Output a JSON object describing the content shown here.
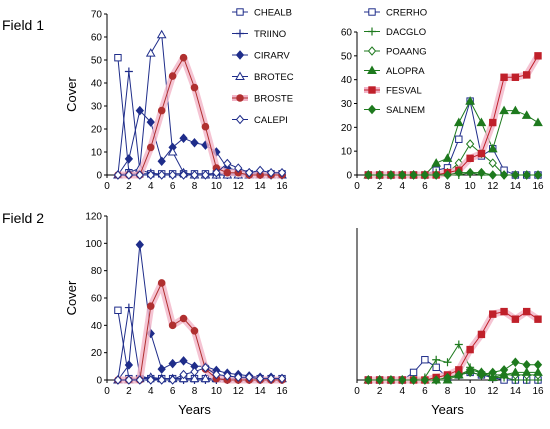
{
  "chart_data": [
    {
      "type": "line",
      "field_label": "Field 1",
      "ylabel": "Cover",
      "xlabel": "",
      "xlim": [
        0,
        16
      ],
      "ylim": [
        0,
        70
      ],
      "xticks": [
        0,
        2,
        4,
        6,
        8,
        10,
        12,
        14,
        16
      ],
      "yticks": [
        0,
        10,
        20,
        30,
        40,
        50,
        60,
        70
      ],
      "legend_position": "right",
      "series": [
        {
          "name": "CHEALB",
          "color": "#1f2d8a",
          "marker": "square-open",
          "x": [
            1,
            2,
            3,
            4,
            5,
            6,
            7,
            8,
            9,
            10,
            11,
            12,
            13,
            14,
            15,
            16
          ],
          "values": [
            51,
            1,
            0.5,
            0.5,
            0.5,
            0.5,
            0.5,
            0.5,
            0.5,
            0.5,
            0.5,
            0.5,
            0.5,
            0.5,
            0.5,
            0.5
          ]
        },
        {
          "name": "TRIINO",
          "color": "#1f2d8a",
          "marker": "plus",
          "x": [
            1,
            2,
            3,
            4,
            5,
            6,
            7,
            8,
            9,
            10,
            11,
            12,
            13,
            14,
            15,
            16
          ],
          "values": [
            0,
            45,
            2,
            1,
            0,
            0,
            0,
            0,
            0,
            0,
            0,
            0,
            0,
            0,
            0,
            0
          ]
        },
        {
          "name": "CIRARV",
          "color": "#1f2d8a",
          "marker": "diamond-filled",
          "x": [
            1,
            2,
            3,
            4,
            5,
            6,
            7,
            8,
            9,
            10,
            11,
            12,
            13,
            14,
            15,
            16
          ],
          "values": [
            0,
            7,
            28,
            23,
            6,
            12,
            16,
            14,
            13,
            10,
            3,
            2,
            1,
            1,
            0,
            0
          ]
        },
        {
          "name": "BROTEC",
          "color": "#1f2d8a",
          "marker": "triangle-open",
          "x": [
            1,
            2,
            3,
            4,
            5,
            6,
            7,
            8,
            9,
            10,
            11,
            12,
            13,
            14,
            15,
            16
          ],
          "values": [
            0,
            1,
            3,
            53,
            61,
            10,
            1,
            0,
            0,
            0,
            0,
            0,
            0,
            0,
            0,
            0
          ]
        },
        {
          "name": "BROSTE",
          "color": "#b03030",
          "marker": "circle-filled",
          "x": [
            1,
            2,
            3,
            4,
            5,
            6,
            7,
            8,
            9,
            10,
            11,
            12,
            13,
            14,
            15,
            16
          ],
          "values": [
            0,
            0,
            0,
            12,
            28,
            43,
            51,
            38,
            21,
            3,
            1,
            1,
            0,
            0,
            0,
            0
          ]
        },
        {
          "name": "CALEPI",
          "color": "#1f2d8a",
          "marker": "diamond-open",
          "x": [
            1,
            2,
            3,
            4,
            5,
            6,
            7,
            8,
            9,
            10,
            11,
            12,
            13,
            14,
            15,
            16
          ],
          "values": [
            0,
            0,
            0,
            0,
            0,
            0,
            0,
            0,
            0,
            1,
            5,
            3,
            1,
            2,
            1,
            1
          ]
        }
      ]
    },
    {
      "type": "line",
      "ylabel": "",
      "xlabel": "",
      "xlim": [
        0,
        16
      ],
      "ylim": [
        0,
        60
      ],
      "xticks": [
        0,
        2,
        4,
        6,
        8,
        10,
        12,
        14,
        16
      ],
      "yticks": [
        0,
        10,
        20,
        30,
        40,
        50,
        60
      ],
      "legend_position": "top-left",
      "series": [
        {
          "name": "CRERHO",
          "color": "#1f2d8a",
          "marker": "square-open",
          "x": [
            1,
            2,
            3,
            4,
            5,
            6,
            7,
            8,
            9,
            10,
            11,
            12,
            13,
            14,
            15,
            16
          ],
          "values": [
            0,
            0,
            0,
            0,
            0,
            0,
            2,
            3,
            15,
            31,
            8,
            11,
            2,
            0,
            0,
            0
          ]
        },
        {
          "name": "DACGLO",
          "color": "#1e7a1e",
          "marker": "plus",
          "x": [
            1,
            2,
            3,
            4,
            5,
            6,
            7,
            8,
            9,
            10,
            11,
            12,
            13,
            14,
            15,
            16
          ],
          "values": [
            0,
            0,
            0,
            0,
            0,
            0,
            1,
            0,
            0,
            1,
            0,
            0,
            0,
            0,
            0,
            0
          ]
        },
        {
          "name": "POAANG",
          "color": "#1e7a1e",
          "marker": "diamond-open",
          "x": [
            1,
            2,
            3,
            4,
            5,
            6,
            7,
            8,
            9,
            10,
            11,
            12,
            13,
            14,
            15,
            16
          ],
          "values": [
            0,
            0,
            0,
            0,
            0,
            0,
            0,
            1,
            5,
            13,
            9,
            5,
            0,
            0,
            0,
            0
          ]
        },
        {
          "name": "ALOPRA",
          "color": "#1e7a1e",
          "marker": "triangle-filled",
          "x": [
            1,
            2,
            3,
            4,
            5,
            6,
            7,
            8,
            9,
            10,
            11,
            12,
            13,
            14,
            15,
            16
          ],
          "values": [
            0,
            0,
            0,
            0,
            0,
            0,
            5,
            7,
            22,
            31,
            22,
            11,
            27,
            27,
            25,
            22
          ]
        },
        {
          "name": "FESVAL",
          "color": "#c0202a",
          "marker": "square-filled",
          "x": [
            1,
            2,
            3,
            4,
            5,
            6,
            7,
            8,
            9,
            10,
            11,
            12,
            13,
            14,
            15,
            16
          ],
          "values": [
            0,
            0,
            0,
            0,
            0,
            0,
            0,
            1,
            2,
            7,
            9,
            22,
            41,
            41,
            42,
            50
          ]
        },
        {
          "name": "SALNEM",
          "color": "#1e7a1e",
          "marker": "diamond-filled",
          "x": [
            1,
            2,
            3,
            4,
            5,
            6,
            7,
            8,
            9,
            10,
            11,
            12,
            13,
            14,
            15,
            16
          ],
          "values": [
            0,
            0,
            0,
            0,
            0,
            0,
            0,
            0,
            1,
            1,
            1,
            0,
            0,
            0,
            0,
            0
          ]
        }
      ]
    },
    {
      "type": "line",
      "field_label": "Field 2",
      "ylabel": "Cover",
      "xlabel": "Years",
      "xlim": [
        0,
        16
      ],
      "ylim": [
        0,
        120
      ],
      "xticks": [
        0,
        2,
        4,
        6,
        8,
        10,
        12,
        14,
        16
      ],
      "yticks": [
        0,
        20,
        40,
        60,
        80,
        100,
        120
      ],
      "series": [
        {
          "name": "CHEALB",
          "color": "#1f2d8a",
          "marker": "square-open",
          "x": [
            1,
            2,
            3,
            4,
            5,
            6,
            7,
            8,
            9,
            10,
            11,
            12,
            13,
            14,
            15,
            16
          ],
          "values": [
            51,
            1,
            1,
            1,
            1,
            1,
            1,
            1,
            1,
            1,
            1,
            1,
            1,
            1,
            1,
            1
          ]
        },
        {
          "name": "TRIINO",
          "color": "#1f2d8a",
          "marker": "plus",
          "x": [
            1,
            2,
            3,
            4,
            5,
            6,
            7,
            8,
            9,
            10,
            11,
            12,
            13,
            14,
            15,
            16
          ],
          "values": [
            0,
            53,
            3,
            1,
            0,
            0,
            0,
            0,
            0,
            0,
            0,
            0,
            0,
            0,
            0,
            0
          ]
        },
        {
          "name": "CIRARV",
          "color": "#1f2d8a",
          "marker": "diamond-filled",
          "x": [
            1,
            2,
            3,
            4,
            5,
            6,
            7,
            8,
            9,
            10,
            11,
            12,
            13,
            14,
            15,
            16
          ],
          "values": [
            0,
            11,
            99,
            34,
            8,
            12,
            14,
            10,
            10,
            7,
            5,
            4,
            3,
            2,
            2,
            1
          ]
        },
        {
          "name": "BROTEC",
          "color": "#1f2d8a",
          "marker": "triangle-open",
          "x": [
            1,
            2,
            3,
            4,
            5,
            6,
            7,
            8,
            9,
            10,
            11,
            12,
            13,
            14,
            15,
            16
          ],
          "values": [
            0,
            0,
            1,
            2,
            1,
            1,
            1,
            1,
            1,
            1,
            1,
            1,
            1,
            1,
            1,
            1
          ]
        },
        {
          "name": "BROSTE",
          "color": "#b03030",
          "marker": "circle-filled",
          "x": [
            1,
            2,
            3,
            4,
            5,
            6,
            7,
            8,
            9,
            10,
            11,
            12,
            13,
            14,
            15,
            16
          ],
          "values": [
            0,
            0,
            0,
            54,
            71,
            40,
            45,
            36,
            8,
            1,
            0,
            0,
            0,
            0,
            0,
            0
          ]
        },
        {
          "name": "CALEPI",
          "color": "#1f2d8a",
          "marker": "diamond-open",
          "x": [
            1,
            2,
            3,
            4,
            5,
            6,
            7,
            8,
            9,
            10,
            11,
            12,
            13,
            14,
            15,
            16
          ],
          "values": [
            0,
            0,
            0,
            0,
            0,
            0,
            4,
            6,
            9,
            4,
            3,
            2,
            2,
            1,
            1,
            1
          ]
        }
      ]
    },
    {
      "type": "line",
      "ylabel": "",
      "xlabel": "Years",
      "xlim": [
        0,
        16
      ],
      "ylim": [
        0,
        60
      ],
      "xticks": [
        0,
        2,
        4,
        6,
        8,
        10,
        12,
        14,
        16
      ],
      "yticks": [],
      "series": [
        {
          "name": "CRERHO",
          "color": "#1f2d8a",
          "marker": "square-open",
          "x": [
            1,
            2,
            3,
            4,
            5,
            6,
            7,
            8,
            9,
            10,
            11,
            12,
            13,
            14,
            15,
            16
          ],
          "values": [
            0,
            0,
            0,
            0,
            3,
            8,
            5,
            1,
            2,
            3,
            2,
            1,
            0,
            0,
            0,
            0
          ]
        },
        {
          "name": "DACGLO",
          "color": "#1e7a1e",
          "marker": "plus",
          "x": [
            1,
            2,
            3,
            4,
            5,
            6,
            7,
            8,
            9,
            10,
            11,
            12,
            13,
            14,
            15,
            16
          ],
          "values": [
            0,
            0,
            0,
            0,
            0,
            1,
            8,
            7,
            14,
            5,
            3,
            1,
            1,
            0,
            0,
            0
          ]
        },
        {
          "name": "POAANG",
          "color": "#1e7a1e",
          "marker": "diamond-open",
          "x": [
            1,
            2,
            3,
            4,
            5,
            6,
            7,
            8,
            9,
            10,
            11,
            12,
            13,
            14,
            15,
            16
          ],
          "values": [
            0,
            0,
            0,
            0,
            0,
            0,
            0,
            1,
            2,
            4,
            3,
            2,
            2,
            2,
            2,
            2
          ]
        },
        {
          "name": "ALOPRA",
          "color": "#1e7a1e",
          "marker": "triangle-filled",
          "x": [
            1,
            2,
            3,
            4,
            5,
            6,
            7,
            8,
            9,
            10,
            11,
            12,
            13,
            14,
            15,
            16
          ],
          "values": [
            0,
            0,
            0,
            0,
            0,
            0,
            0,
            0,
            2,
            4,
            3,
            1,
            2,
            3,
            3,
            3
          ]
        },
        {
          "name": "FESVAL",
          "color": "#c0202a",
          "marker": "square-filled",
          "x": [
            1,
            2,
            3,
            4,
            5,
            6,
            7,
            8,
            9,
            10,
            11,
            12,
            13,
            14,
            15,
            16
          ],
          "values": [
            0,
            0,
            0,
            0,
            0,
            0,
            1,
            2,
            4,
            12,
            18,
            26,
            27,
            24,
            27,
            24
          ]
        },
        {
          "name": "SALNEM",
          "color": "#1e7a1e",
          "marker": "diamond-filled",
          "x": [
            1,
            2,
            3,
            4,
            5,
            6,
            7,
            8,
            9,
            10,
            11,
            12,
            13,
            14,
            15,
            16
          ],
          "values": [
            0,
            0,
            0,
            0,
            0,
            0,
            0,
            1,
            2,
            3,
            2,
            3,
            4,
            7,
            6,
            6
          ]
        }
      ]
    }
  ]
}
